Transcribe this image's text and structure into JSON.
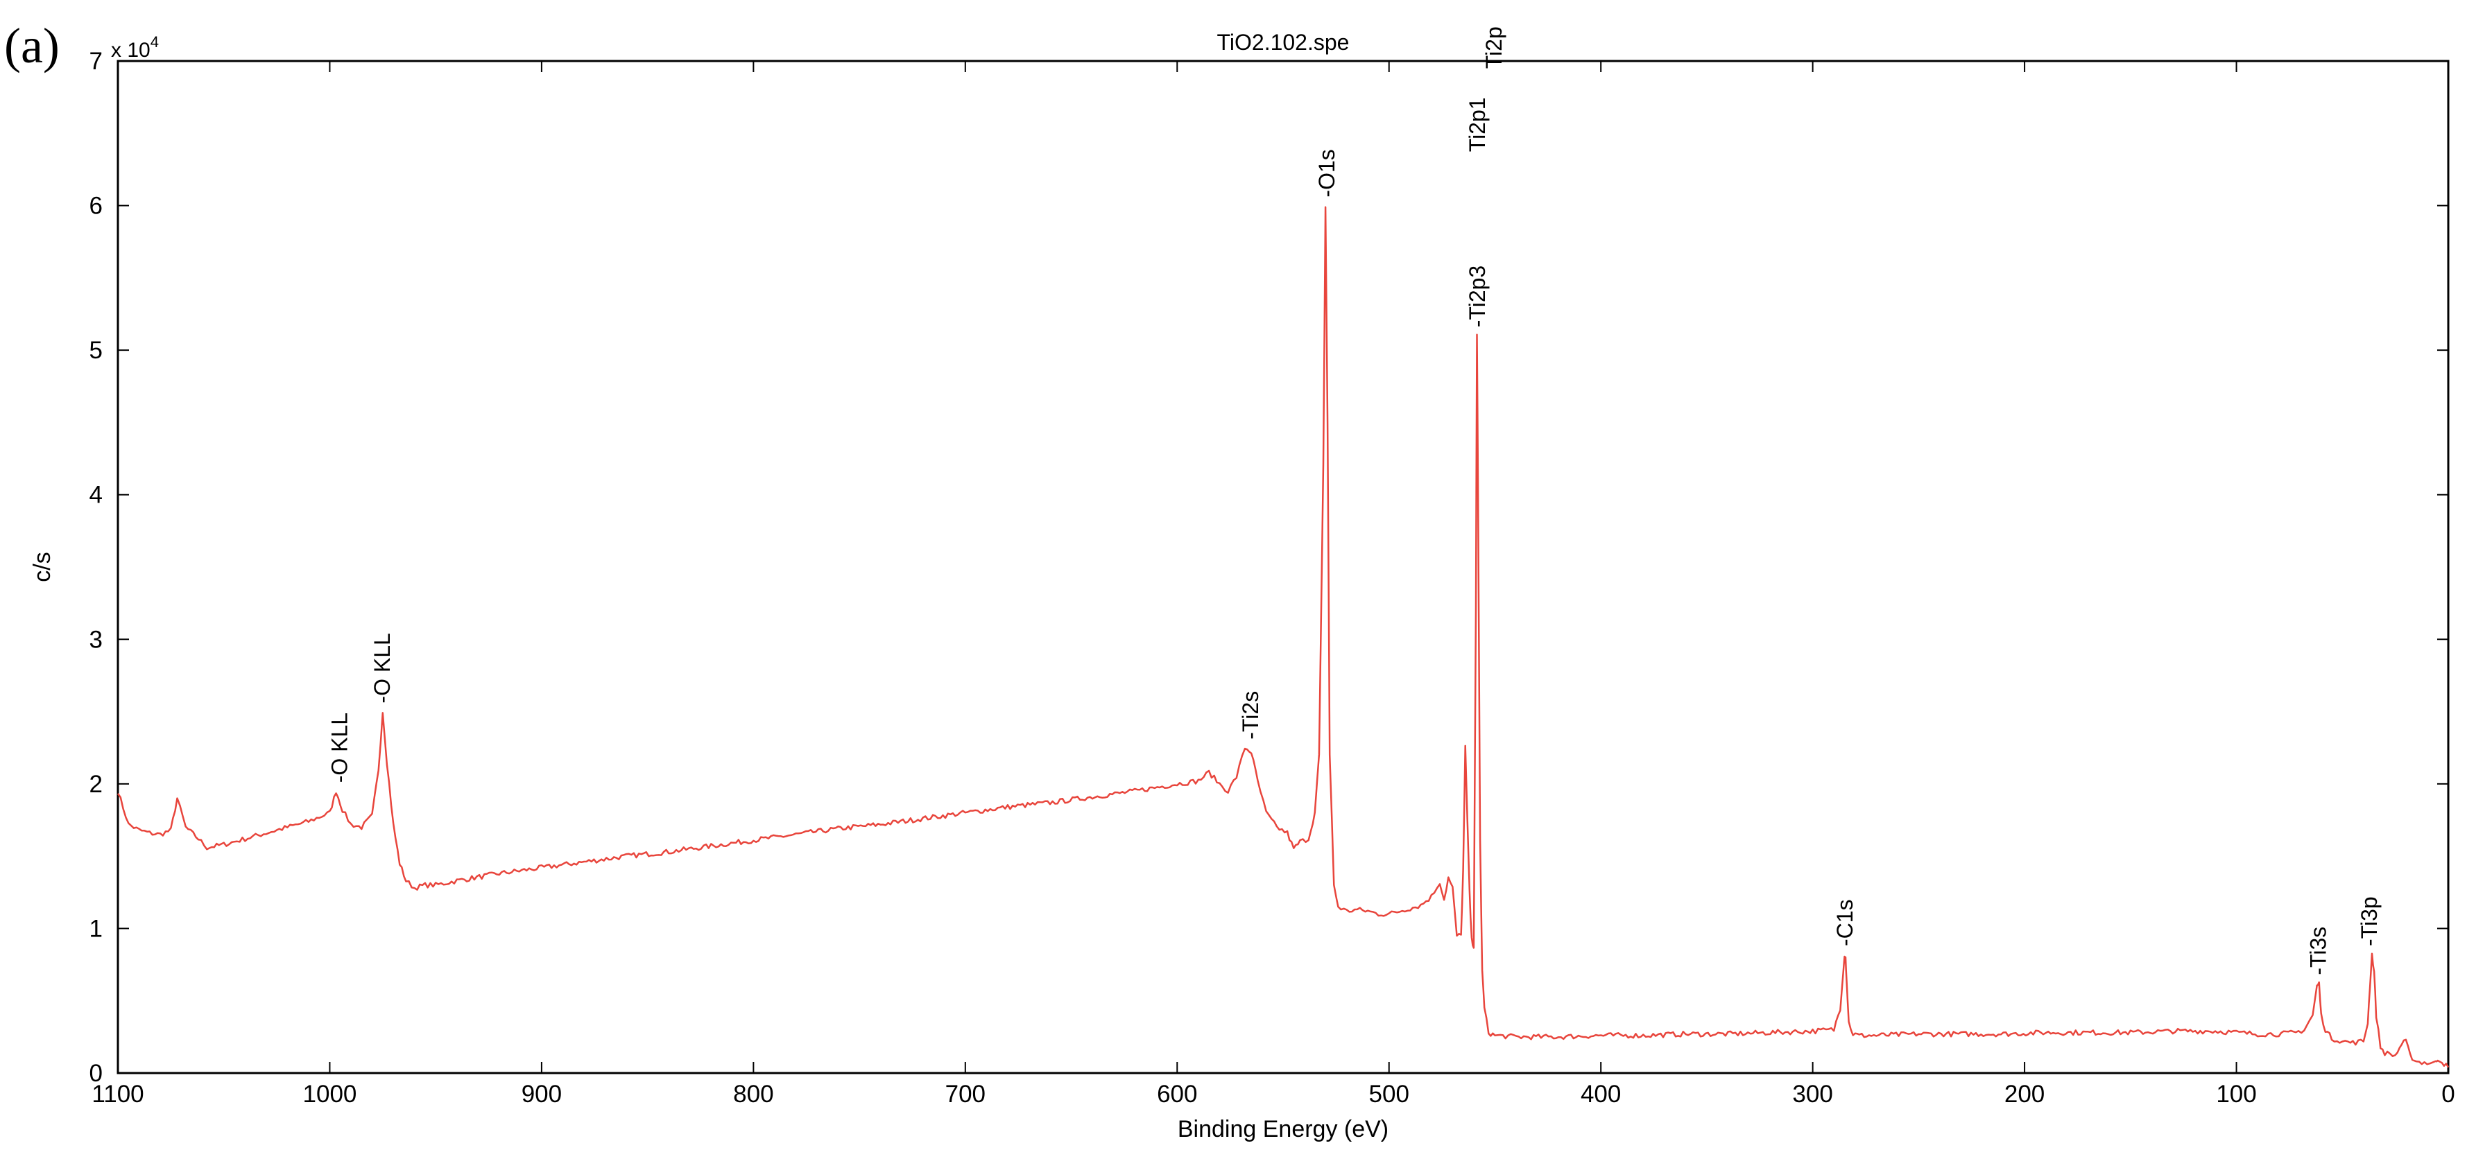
{
  "panel_label": "(a)",
  "chart_data": {
    "type": "line",
    "title": "TiO2.102.spe",
    "xlabel": "Binding Energy (eV)",
    "ylabel": "c/s",
    "y_multiplier": "x 10",
    "y_multiplier_exponent": "4",
    "xlim": [
      1100,
      0
    ],
    "x_reversed": true,
    "ylim": [
      0,
      7
    ],
    "x_ticks": [
      1100,
      1000,
      900,
      800,
      700,
      600,
      500,
      400,
      300,
      200,
      100,
      0
    ],
    "y_ticks": [
      0,
      1,
      2,
      3,
      4,
      5,
      6,
      7
    ],
    "grid": false,
    "line_color": "#e8453c",
    "series": [
      {
        "x": [
          1100,
          1095,
          1090,
          1085,
          1080,
          1075,
          1072,
          1068,
          1062,
          1058,
          1050,
          1040,
          1030,
          1020,
          1010,
          1000,
          997,
          994,
          990,
          985,
          980,
          977,
          975,
          973,
          970,
          967,
          964,
          960,
          955,
          950,
          940,
          920,
          900,
          880,
          860,
          840,
          820,
          800,
          780,
          760,
          740,
          720,
          700,
          680,
          660,
          640,
          620,
          600,
          590,
          585,
          580,
          576,
          572,
          568,
          565,
          562,
          558,
          553,
          548,
          545,
          542,
          538,
          535,
          533,
          531,
          530,
          529,
          528,
          526,
          524,
          520,
          515,
          510,
          505,
          500,
          495,
          490,
          485,
          480,
          476,
          474,
          472,
          470,
          468,
          466,
          465,
          464,
          462,
          461,
          460,
          459,
          458.5,
          458,
          457,
          456,
          455,
          453,
          450,
          440,
          420,
          400,
          380,
          360,
          340,
          320,
          300,
          290,
          287,
          285,
          284.5,
          284,
          283,
          281,
          278,
          270,
          250,
          230,
          210,
          190,
          170,
          150,
          130,
          110,
          100,
          90,
          80,
          72,
          68,
          64,
          62,
          61,
          60,
          58,
          55,
          50,
          45,
          40,
          38,
          37,
          36,
          35,
          34,
          32,
          30,
          25,
          22,
          20,
          18,
          15,
          10,
          6,
          5,
          3,
          1,
          0
        ],
        "y": [
          1.95,
          1.72,
          1.68,
          1.66,
          1.65,
          1.68,
          1.9,
          1.7,
          1.62,
          1.56,
          1.58,
          1.62,
          1.66,
          1.7,
          1.74,
          1.8,
          1.95,
          1.82,
          1.72,
          1.7,
          1.78,
          2.1,
          2.5,
          2.15,
          1.72,
          1.45,
          1.33,
          1.28,
          1.3,
          1.3,
          1.33,
          1.38,
          1.42,
          1.46,
          1.5,
          1.53,
          1.57,
          1.61,
          1.65,
          1.69,
          1.72,
          1.76,
          1.8,
          1.84,
          1.87,
          1.91,
          1.95,
          2.0,
          2.02,
          2.08,
          2.0,
          1.95,
          2.05,
          2.25,
          2.22,
          2.02,
          1.8,
          1.7,
          1.66,
          1.55,
          1.6,
          1.62,
          1.8,
          2.2,
          4.2,
          6.0,
          4.5,
          2.2,
          1.3,
          1.15,
          1.12,
          1.13,
          1.12,
          1.1,
          1.1,
          1.12,
          1.14,
          1.16,
          1.22,
          1.32,
          1.2,
          1.35,
          1.28,
          0.95,
          0.95,
          1.4,
          2.25,
          1.25,
          0.92,
          0.88,
          3.2,
          5.1,
          4.1,
          1.6,
          0.7,
          0.45,
          0.28,
          0.26,
          0.25,
          0.25,
          0.26,
          0.26,
          0.27,
          0.27,
          0.28,
          0.29,
          0.3,
          0.45,
          0.82,
          0.8,
          0.65,
          0.35,
          0.27,
          0.26,
          0.26,
          0.27,
          0.27,
          0.27,
          0.28,
          0.28,
          0.28,
          0.29,
          0.29,
          0.28,
          0.27,
          0.27,
          0.28,
          0.3,
          0.4,
          0.6,
          0.62,
          0.4,
          0.3,
          0.24,
          0.22,
          0.21,
          0.22,
          0.35,
          0.6,
          0.82,
          0.7,
          0.4,
          0.18,
          0.14,
          0.12,
          0.2,
          0.22,
          0.12,
          0.08,
          0.07,
          0.07,
          0.1,
          0.08,
          0.05,
          0.04
        ]
      }
    ],
    "annotations": [
      {
        "text": "-O KLL",
        "x": 995,
        "y": 1.95
      },
      {
        "text": "-O KLL",
        "x": 975,
        "y": 2.5
      },
      {
        "text": "-Ti2s",
        "x": 565,
        "y": 2.25
      },
      {
        "text": "-O1s",
        "x": 529,
        "y": 6.0
      },
      {
        "text": "-Ti2p3",
        "x": 458,
        "y": 5.1
      },
      {
        "text": "Ti2p1",
        "x": 458,
        "y": 5.1
      },
      {
        "text": "Ti2p",
        "x": 458,
        "y": 5.1
      },
      {
        "text": "-C1s",
        "x": 284.5,
        "y": 0.82
      },
      {
        "text": "-Ti3s",
        "x": 61,
        "y": 0.62
      },
      {
        "text": "-Ti3p",
        "x": 37,
        "y": 0.82
      }
    ]
  }
}
